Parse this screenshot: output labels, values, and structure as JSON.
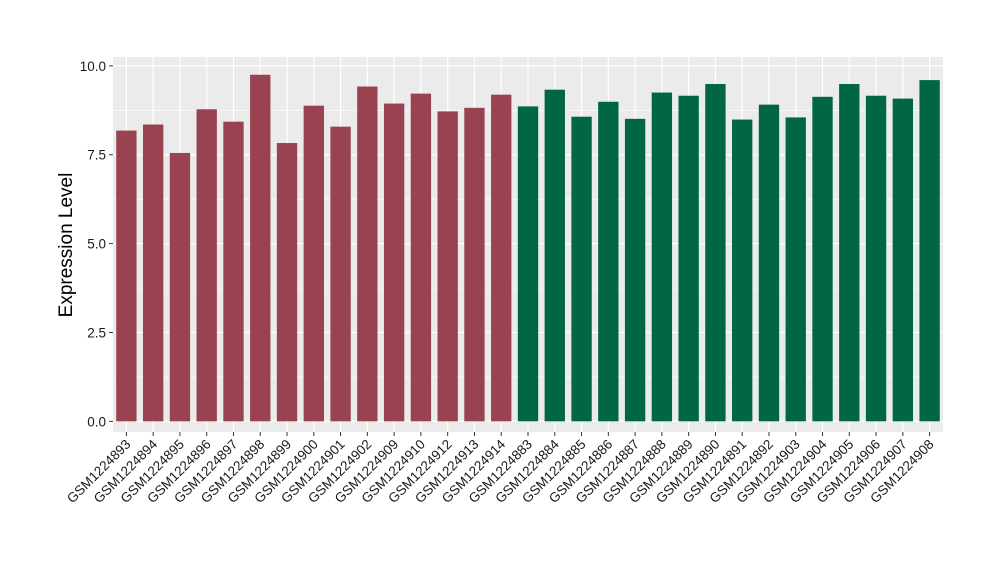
{
  "chart_data": {
    "type": "bar",
    "title": "",
    "xlabel": "",
    "ylabel": "Expression Level",
    "ylim": [
      -0.3,
      10.25
    ],
    "yticks": [
      0.0,
      2.5,
      5.0,
      7.5,
      10.0
    ],
    "ytick_labels": [
      "0.0",
      "2.5",
      "5.0",
      "7.5",
      "10.0"
    ],
    "grid": true,
    "legend": "none",
    "categories": [
      "GSM1224893",
      "GSM1224894",
      "GSM1224895",
      "GSM1224896",
      "GSM1224897",
      "GSM1224898",
      "GSM1224899",
      "GSM1224900",
      "GSM1224901",
      "GSM1224902",
      "GSM1224909",
      "GSM1224910",
      "GSM1224912",
      "GSM1224913",
      "GSM1224914",
      "GSM1224883",
      "GSM1224884",
      "GSM1224885",
      "GSM1224886",
      "GSM1224887",
      "GSM1224888",
      "GSM1224889",
      "GSM1224890",
      "GSM1224891",
      "GSM1224892",
      "GSM1224903",
      "GSM1224904",
      "GSM1224905",
      "GSM1224906",
      "GSM1224907",
      "GSM1224908"
    ],
    "values": [
      8.18,
      8.35,
      7.55,
      8.78,
      8.43,
      9.75,
      7.83,
      8.88,
      8.29,
      9.42,
      8.94,
      9.22,
      8.72,
      8.82,
      9.19,
      8.86,
      9.33,
      8.57,
      8.99,
      8.51,
      9.25,
      9.16,
      9.49,
      8.49,
      8.91,
      8.55,
      9.13,
      9.49,
      9.16,
      9.08,
      9.6
    ],
    "bar_colors": [
      "#9a4350",
      "#9a4350",
      "#9a4350",
      "#9a4350",
      "#9a4350",
      "#9a4350",
      "#9a4350",
      "#9a4350",
      "#9a4350",
      "#9a4350",
      "#9a4350",
      "#9a4350",
      "#9a4350",
      "#9a4350",
      "#9a4350",
      "#006644",
      "#006644",
      "#006644",
      "#006644",
      "#006644",
      "#006644",
      "#006644",
      "#006644",
      "#006644",
      "#006644",
      "#006644",
      "#006644",
      "#006644",
      "#006644",
      "#006644",
      "#006644"
    ],
    "panel_background": "#ebebeb",
    "grid_color": "#ffffff"
  }
}
